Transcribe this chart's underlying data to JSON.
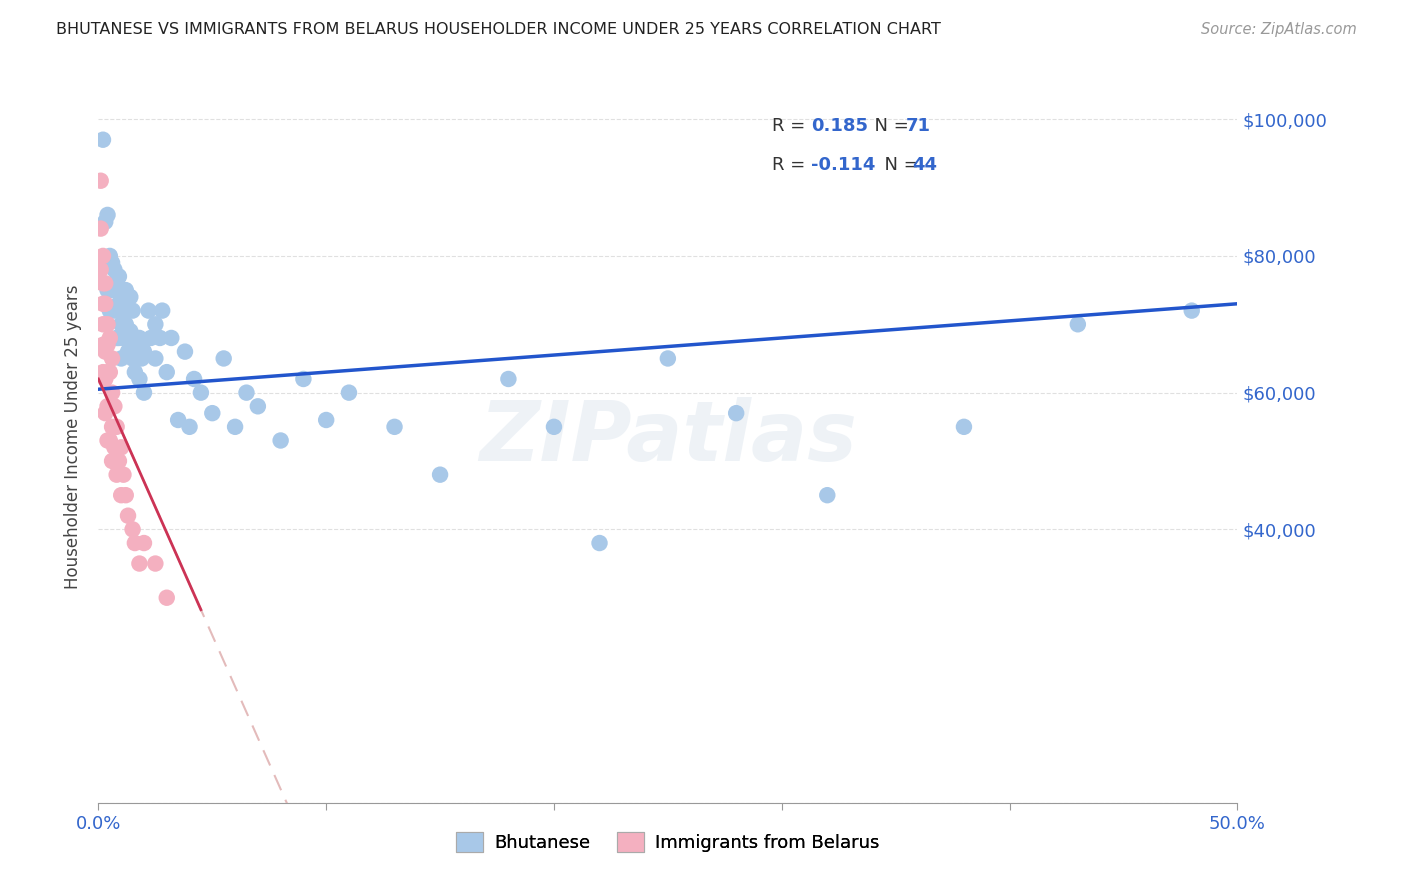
{
  "title": "BHUTANESE VS IMMIGRANTS FROM BELARUS HOUSEHOLDER INCOME UNDER 25 YEARS CORRELATION CHART",
  "source": "Source: ZipAtlas.com",
  "ylabel": "Householder Income Under 25 years",
  "xlim": [
    0,
    0.5
  ],
  "ylim": [
    0,
    107000
  ],
  "yticks": [
    0,
    40000,
    60000,
    80000,
    100000
  ],
  "ytick_labels_right": [
    "",
    "$40,000",
    "$60,000",
    "$80,000",
    "$100,000"
  ],
  "xticks": [
    0.0,
    0.1,
    0.2,
    0.3,
    0.4,
    0.5
  ],
  "blue_scatter": "#a8c8e8",
  "pink_scatter": "#f4b0c0",
  "blue_line": "#2255cc",
  "pink_line_solid": "#cc3355",
  "pink_line_dash": "#ddaaaa",
  "grid_color": "#cccccc",
  "bhutanese_x": [
    0.002,
    0.003,
    0.004,
    0.004,
    0.005,
    0.005,
    0.005,
    0.006,
    0.006,
    0.007,
    0.007,
    0.007,
    0.008,
    0.008,
    0.009,
    0.009,
    0.009,
    0.01,
    0.01,
    0.01,
    0.011,
    0.011,
    0.012,
    0.012,
    0.013,
    0.013,
    0.014,
    0.014,
    0.015,
    0.015,
    0.016,
    0.016,
    0.017,
    0.018,
    0.018,
    0.019,
    0.02,
    0.02,
    0.022,
    0.023,
    0.025,
    0.025,
    0.027,
    0.028,
    0.03,
    0.032,
    0.035,
    0.038,
    0.04,
    0.042,
    0.045,
    0.05,
    0.055,
    0.06,
    0.065,
    0.07,
    0.08,
    0.09,
    0.1,
    0.11,
    0.13,
    0.15,
    0.18,
    0.2,
    0.22,
    0.25,
    0.28,
    0.32,
    0.38,
    0.43,
    0.48
  ],
  "bhutanese_y": [
    97000,
    85000,
    86000,
    75000,
    80000,
    79000,
    72000,
    79000,
    75000,
    78000,
    76000,
    72000,
    75000,
    68000,
    77000,
    73000,
    68000,
    74000,
    70000,
    65000,
    72000,
    68000,
    75000,
    70000,
    72000,
    66000,
    74000,
    69000,
    72000,
    65000,
    68000,
    63000,
    66000,
    68000,
    62000,
    65000,
    66000,
    60000,
    72000,
    68000,
    70000,
    65000,
    68000,
    72000,
    63000,
    68000,
    56000,
    66000,
    55000,
    62000,
    60000,
    57000,
    65000,
    55000,
    60000,
    58000,
    53000,
    62000,
    56000,
    60000,
    55000,
    48000,
    62000,
    55000,
    38000,
    65000,
    57000,
    45000,
    55000,
    70000,
    72000
  ],
  "belarus_x": [
    0.001,
    0.001,
    0.001,
    0.002,
    0.002,
    0.002,
    0.002,
    0.002,
    0.002,
    0.003,
    0.003,
    0.003,
    0.003,
    0.003,
    0.003,
    0.004,
    0.004,
    0.004,
    0.004,
    0.004,
    0.005,
    0.005,
    0.005,
    0.005,
    0.006,
    0.006,
    0.006,
    0.006,
    0.007,
    0.007,
    0.008,
    0.008,
    0.009,
    0.01,
    0.01,
    0.011,
    0.012,
    0.013,
    0.015,
    0.016,
    0.018,
    0.02,
    0.025,
    0.03
  ],
  "belarus_y": [
    91000,
    84000,
    78000,
    80000,
    76000,
    73000,
    70000,
    67000,
    63000,
    76000,
    73000,
    70000,
    66000,
    62000,
    57000,
    70000,
    67000,
    63000,
    58000,
    53000,
    68000,
    63000,
    58000,
    53000,
    65000,
    60000,
    55000,
    50000,
    58000,
    52000,
    55000,
    48000,
    50000,
    52000,
    45000,
    48000,
    45000,
    42000,
    40000,
    38000,
    35000,
    38000,
    35000,
    30000
  ],
  "pink_trend_solid_end_x": 0.045,
  "blue_trend_intercept": 60500,
  "blue_trend_slope": 25000,
  "pink_trend_intercept": 62000,
  "pink_trend_slope": -750000
}
